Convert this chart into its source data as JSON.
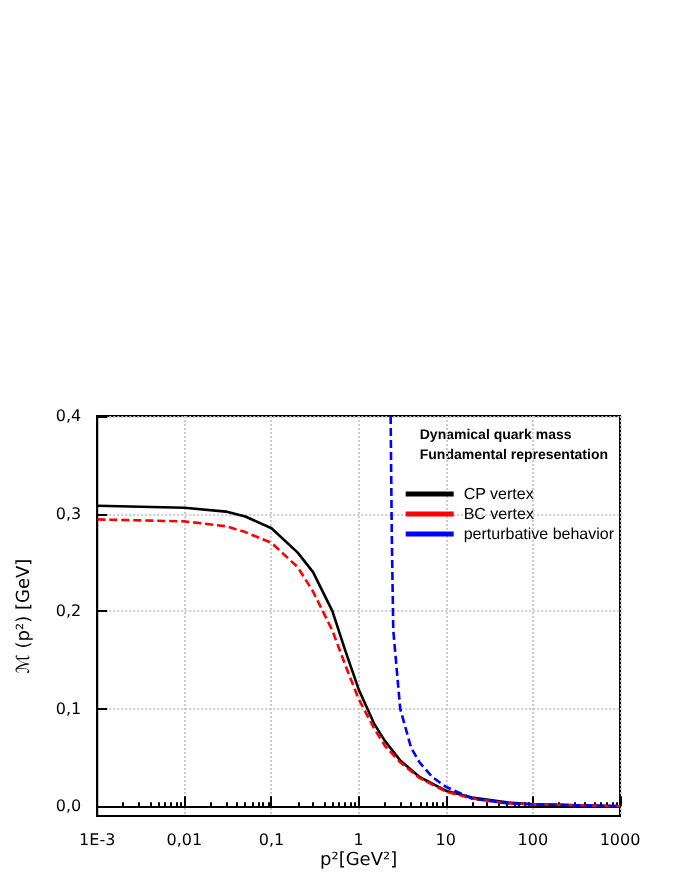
{
  "chart_data": {
    "type": "line",
    "xlabel": "p²[GeV²]",
    "ylabel": "ℳ (p²) [GeV]",
    "legend_title": "Dynamical quark mass\nFundamental representation",
    "log": "x",
    "grid": true,
    "legend": "top right",
    "marker": "none",
    "xlim": [
      0.001,
      1000
    ],
    "xticks": [
      {
        "value": 0.001,
        "label": "1E-3"
      },
      {
        "value": 0.01,
        "label": "0,01"
      },
      {
        "value": 0.1,
        "label": "0,1"
      },
      1,
      10,
      100,
      1000
    ],
    "ylim": [
      -0.01,
      0.4
    ],
    "yticks": [
      {
        "value": 0,
        "label": "0,0"
      },
      {
        "value": 0.1,
        "label": "0,1"
      },
      {
        "value": 0.2,
        "label": "0,2"
      },
      {
        "value": 0.3,
        "label": "0,3"
      },
      {
        "value": 0.4,
        "label": "0,4"
      }
    ],
    "series": [
      {
        "name": "CP vertex",
        "color": "#000000",
        "line_style": "solid",
        "x": [
          0.001,
          0.01,
          0.03,
          0.05,
          0.1,
          0.2,
          0.3,
          0.5,
          0.7,
          1,
          1.5,
          2,
          3,
          5,
          10,
          20,
          50,
          100,
          1000
        ],
        "values": [
          0.308,
          0.306,
          0.302,
          0.297,
          0.285,
          0.26,
          0.24,
          0.2,
          0.16,
          0.12,
          0.085,
          0.067,
          0.047,
          0.03,
          0.016,
          0.009,
          0.004,
          0.002,
          0
        ]
      },
      {
        "name": "BC vertex",
        "color": "#ff0000",
        "line_style": "dashed",
        "x": [
          0.001,
          0.01,
          0.03,
          0.05,
          0.1,
          0.2,
          0.3,
          0.5,
          0.7,
          1,
          1.5,
          2,
          3,
          5,
          10,
          20,
          50,
          100,
          1000
        ],
        "values": [
          0.294,
          0.292,
          0.287,
          0.281,
          0.27,
          0.245,
          0.22,
          0.18,
          0.145,
          0.11,
          0.08,
          0.062,
          0.045,
          0.029,
          0.015,
          0.008,
          0.003,
          0.002,
          0
        ]
      },
      {
        "name": "perturbative behavior",
        "color": "#0000ff",
        "line_style": "dashed",
        "x": [
          2.33,
          2.4,
          2.5,
          3,
          4,
          5,
          7,
          10,
          20,
          50,
          100,
          1000
        ],
        "values": [
          0.4,
          0.28,
          0.18,
          0.1,
          0.06,
          0.045,
          0.03,
          0.02,
          0.008,
          0.003,
          0.002,
          0
        ]
      }
    ]
  }
}
